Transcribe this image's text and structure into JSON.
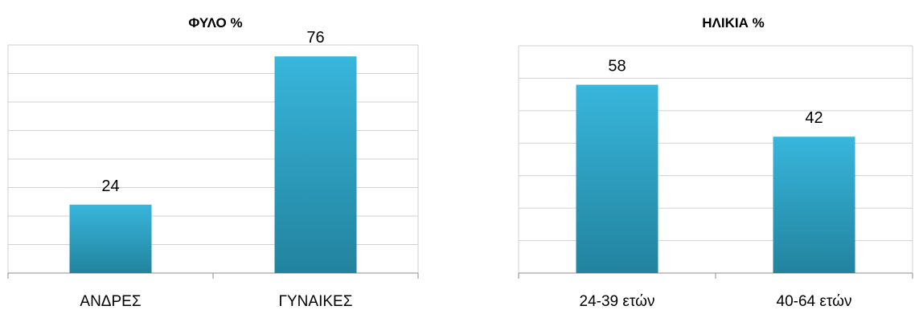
{
  "colors": {
    "bar_top": "#38b6dc",
    "bar_bottom": "#22839e",
    "grid": "#d0d0d0",
    "axis": "#8c8c8c"
  },
  "chart_data": [
    {
      "type": "bar",
      "title": "ΦΥΛΟ %",
      "categories": [
        "ΑΝΔΡΕΣ",
        "ΓΥΝΑΙΚΕΣ"
      ],
      "values": [
        24,
        76
      ],
      "data_labels": [
        "24",
        "76"
      ],
      "xlabel": "",
      "ylabel": "",
      "ylim": [
        0,
        80
      ],
      "gridlines": 8,
      "grid": true,
      "legend": "none"
    },
    {
      "type": "bar",
      "title": "ΗΛΙΚΙΑ %",
      "categories": [
        "24-39 ετών",
        "40-64 ετών"
      ],
      "values": [
        58,
        42
      ],
      "data_labels": [
        "58",
        "42"
      ],
      "xlabel": "",
      "ylabel": "",
      "ylim": [
        0,
        70
      ],
      "gridlines": 7,
      "grid": true,
      "legend": "none"
    }
  ]
}
